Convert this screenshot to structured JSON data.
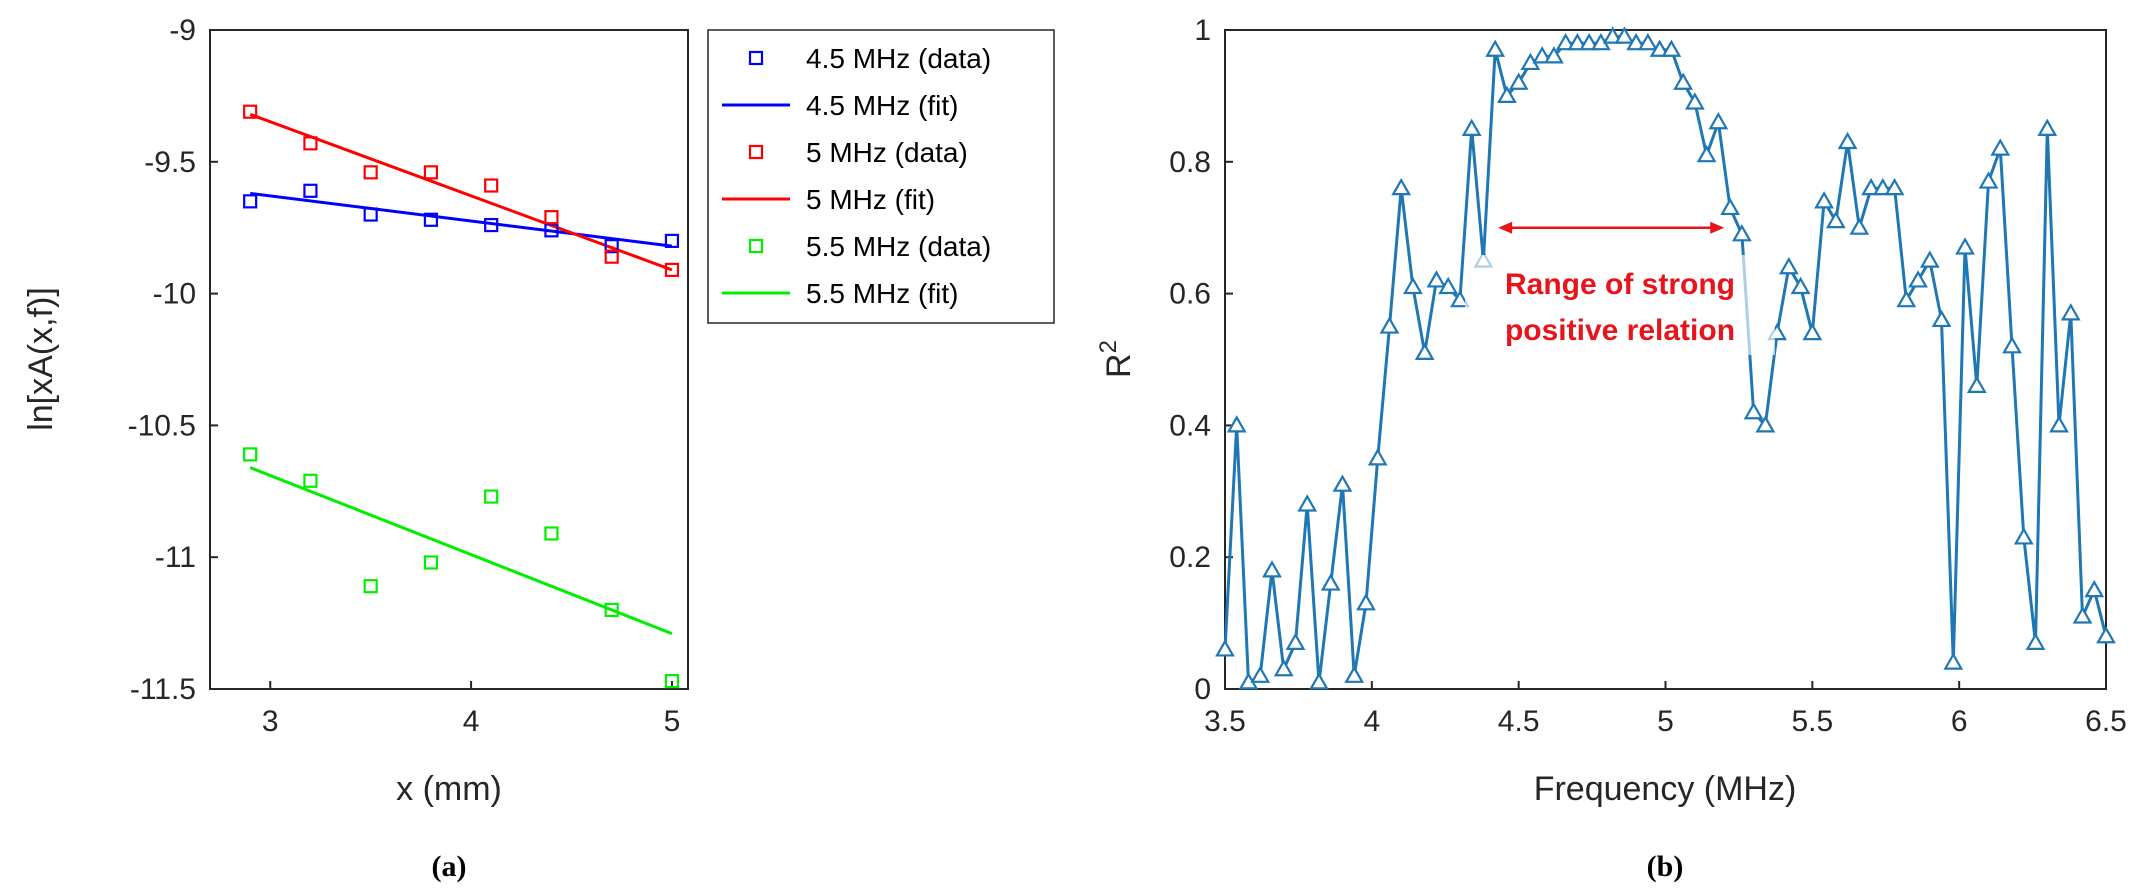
{
  "chart_data": [
    {
      "type": "scatter",
      "panel_label": "(a)",
      "xlabel": "x (mm)",
      "ylabel": "ln[xA(x,f)]",
      "xlim": [
        2.7,
        5.08
      ],
      "ylim": [
        -11.5,
        -9
      ],
      "xticks": [
        "3",
        "4",
        "5"
      ],
      "yticks": [
        "-9",
        "-9.5",
        "-10",
        "-10.5",
        "-11",
        "-11.5"
      ],
      "grid": false,
      "legend_position": "outside-right",
      "series": [
        {
          "name": "4.5 MHz (data)",
          "kind": "markers",
          "color": "#0000ff",
          "x": [
            2.9,
            3.2,
            3.5,
            3.8,
            4.1,
            4.4,
            4.7,
            5.0
          ],
          "y": [
            -9.65,
            -9.61,
            -9.7,
            -9.72,
            -9.74,
            -9.76,
            -9.82,
            -9.8
          ]
        },
        {
          "name": "4.5 MHz (fit)",
          "kind": "line",
          "color": "#0000ff",
          "x": [
            2.9,
            5.0
          ],
          "y": [
            -9.62,
            -9.82
          ]
        },
        {
          "name": "5 MHz (data)",
          "kind": "markers",
          "color": "#ff0000",
          "x": [
            2.9,
            3.2,
            3.5,
            3.8,
            4.1,
            4.4,
            4.7,
            5.0
          ],
          "y": [
            -9.31,
            -9.43,
            -9.54,
            -9.54,
            -9.59,
            -9.71,
            -9.86,
            -9.91
          ]
        },
        {
          "name": "5 MHz (fit)",
          "kind": "line",
          "color": "#ff0000",
          "x": [
            2.9,
            5.0
          ],
          "y": [
            -9.32,
            -9.91
          ]
        },
        {
          "name": "5.5 MHz (data)",
          "kind": "markers",
          "color": "#00ee00",
          "x": [
            2.9,
            3.2,
            3.5,
            3.8,
            4.1,
            4.4,
            4.7,
            5.0
          ],
          "y": [
            -10.61,
            -10.71,
            -11.11,
            -11.02,
            -10.77,
            -10.91,
            -11.2,
            -11.47
          ]
        },
        {
          "name": "5.5 MHz (fit)",
          "kind": "line",
          "color": "#00ee00",
          "x": [
            2.9,
            5.0
          ],
          "y": [
            -10.66,
            -11.29
          ]
        }
      ]
    },
    {
      "type": "line",
      "panel_label": "(b)",
      "xlabel": "Frequency (MHz)",
      "ylabel": "R",
      "ylabel_superscript": "2",
      "xlim": [
        3.5,
        6.5
      ],
      "ylim": [
        0,
        1
      ],
      "xticks": [
        "3.5",
        "4",
        "4.5",
        "5",
        "5.5",
        "6",
        "6.5"
      ],
      "yticks": [
        "0",
        "0.2",
        "0.4",
        "0.6",
        "0.8",
        "1"
      ],
      "grid": false,
      "annotation": {
        "line1": "Range of strong",
        "line2": "positive relation",
        "arrow_from_x": 4.43,
        "arrow_to_x": 5.2,
        "arrow_y": 0.7,
        "color": "#e8141c"
      },
      "series": [
        {
          "name": "R2",
          "color": "#1f77b4",
          "marker": "triangle",
          "x": [
            3.5,
            3.54,
            3.58,
            3.62,
            3.66,
            3.7,
            3.74,
            3.78,
            3.82,
            3.86,
            3.9,
            3.94,
            3.98,
            4.02,
            4.06,
            4.1,
            4.14,
            4.18,
            4.22,
            4.26,
            4.3,
            4.34,
            4.38,
            4.42,
            4.46,
            4.5,
            4.54,
            4.58,
            4.62,
            4.66,
            4.7,
            4.74,
            4.78,
            4.82,
            4.86,
            4.9,
            4.94,
            4.98,
            5.02,
            5.06,
            5.1,
            5.14,
            5.18,
            5.22,
            5.26,
            5.3,
            5.34,
            5.38,
            5.42,
            5.46,
            5.5,
            5.54,
            5.58,
            5.62,
            5.66,
            5.7,
            5.74,
            5.78,
            5.82,
            5.86,
            5.9,
            5.94,
            5.98,
            6.02,
            6.06,
            6.1,
            6.14,
            6.18,
            6.22,
            6.26,
            6.3,
            6.34,
            6.38,
            6.42,
            6.46,
            6.5
          ],
          "y": [
            0.06,
            0.4,
            0.01,
            0.02,
            0.18,
            0.03,
            0.07,
            0.28,
            0.01,
            0.16,
            0.31,
            0.02,
            0.13,
            0.35,
            0.55,
            0.76,
            0.61,
            0.51,
            0.62,
            0.61,
            0.59,
            0.85,
            0.65,
            0.97,
            0.9,
            0.92,
            0.95,
            0.96,
            0.96,
            0.98,
            0.98,
            0.98,
            0.98,
            0.99,
            0.99,
            0.98,
            0.98,
            0.97,
            0.97,
            0.92,
            0.89,
            0.81,
            0.86,
            0.73,
            0.69,
            0.42,
            0.4,
            0.54,
            0.64,
            0.61,
            0.54,
            0.74,
            0.71,
            0.83,
            0.7,
            0.76,
            0.76,
            0.76,
            0.59,
            0.62,
            0.65,
            0.56,
            0.04,
            0.67,
            0.46,
            0.77,
            0.82,
            0.52,
            0.23,
            0.07,
            0.85,
            0.4,
            0.57,
            0.11,
            0.15,
            0.08
          ]
        }
      ]
    }
  ]
}
